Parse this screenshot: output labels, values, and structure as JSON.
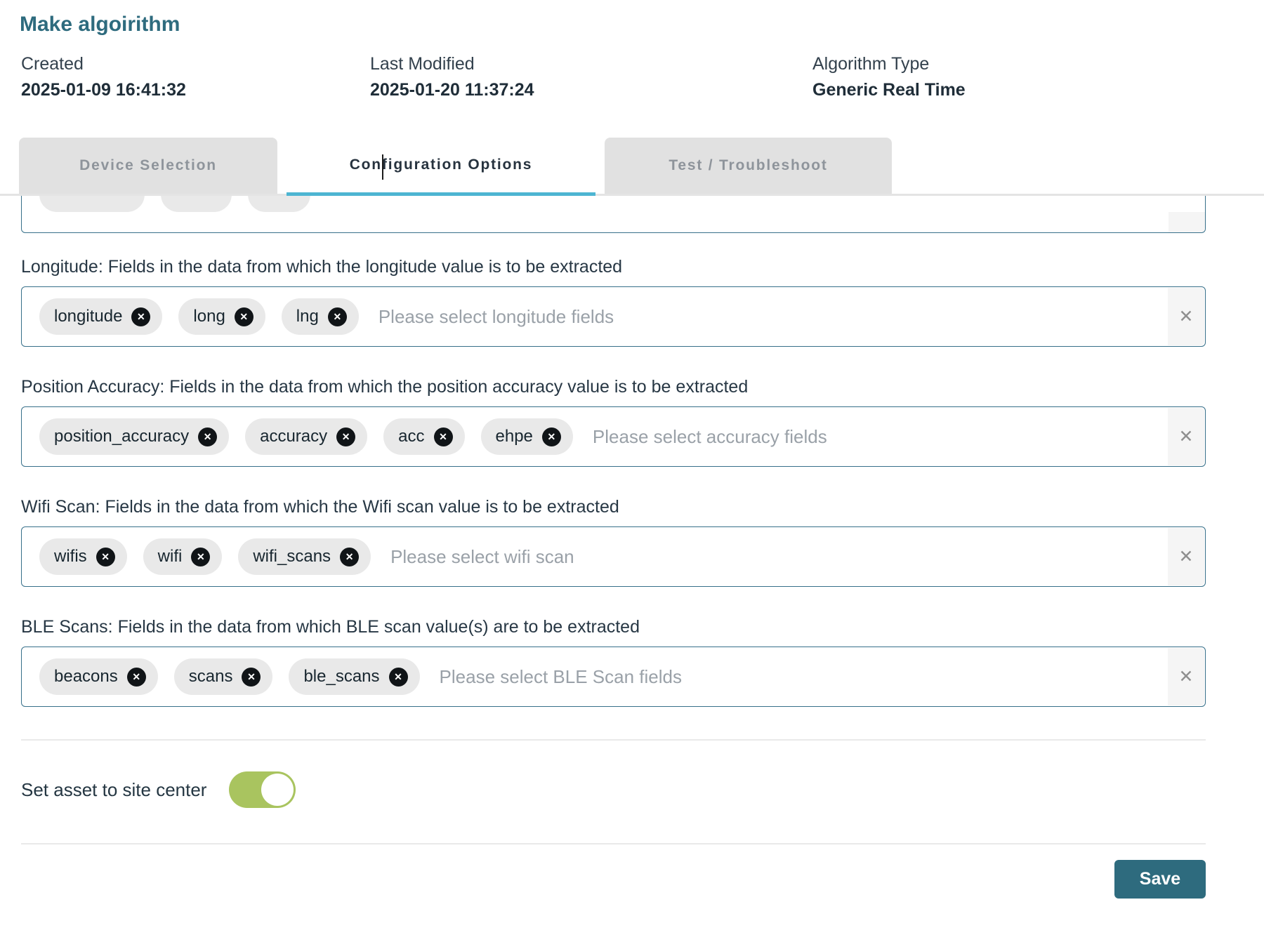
{
  "header": {
    "title": "Make algoirithm"
  },
  "meta": {
    "created": {
      "label": "Created",
      "value": "2025-01-09 16:41:32"
    },
    "modified": {
      "label": "Last Modified",
      "value": "2025-01-20 11:37:24"
    },
    "algorithm_type": {
      "label": "Algorithm Type",
      "value": "Generic Real Time"
    }
  },
  "tabs": [
    {
      "label": "Device Selection",
      "active": false
    },
    {
      "label": "Configuration Options",
      "active": true
    },
    {
      "label": "Test / Troubleshoot",
      "active": false
    }
  ],
  "truncated_field": {
    "chips": [
      "",
      "",
      ""
    ]
  },
  "fields": [
    {
      "name": "longitude",
      "label": "Longitude: Fields in the data from which the longitude value is to be extracted",
      "chips": [
        "longitude",
        "long",
        "lng"
      ],
      "placeholder": "Please select longitude fields"
    },
    {
      "name": "position-accuracy",
      "label": "Position Accuracy: Fields in the data from which the position accuracy value is to be extracted",
      "chips": [
        "position_accuracy",
        "accuracy",
        "acc",
        "ehpe"
      ],
      "placeholder": "Please select accuracy fields"
    },
    {
      "name": "wifi-scan",
      "label": "Wifi Scan: Fields in the data from which the Wifi scan value is to be extracted",
      "chips": [
        "wifis",
        "wifi",
        "wifi_scans"
      ],
      "placeholder": "Please select wifi scan"
    },
    {
      "name": "ble-scans",
      "label": "BLE Scans: Fields in the data from which BLE scan value(s) are to be extracted",
      "chips": [
        "beacons",
        "scans",
        "ble_scans"
      ],
      "placeholder": "Please select BLE Scan fields"
    }
  ],
  "toggle": {
    "label": "Set asset to site center",
    "state": "on"
  },
  "actions": {
    "save_label": "Save"
  },
  "icons": {
    "chip_remove": "x-circle-icon",
    "field_clear": "x-icon",
    "chip_remove_glyph": "✕",
    "field_clear_glyph": "✕"
  },
  "colors": {
    "accent_teal": "#2e6b7e",
    "tab_highlight": "#4db5d2",
    "toggle_green": "#a9c45f",
    "input_border": "#37708a",
    "chip_bg": "#e9e9e9"
  }
}
